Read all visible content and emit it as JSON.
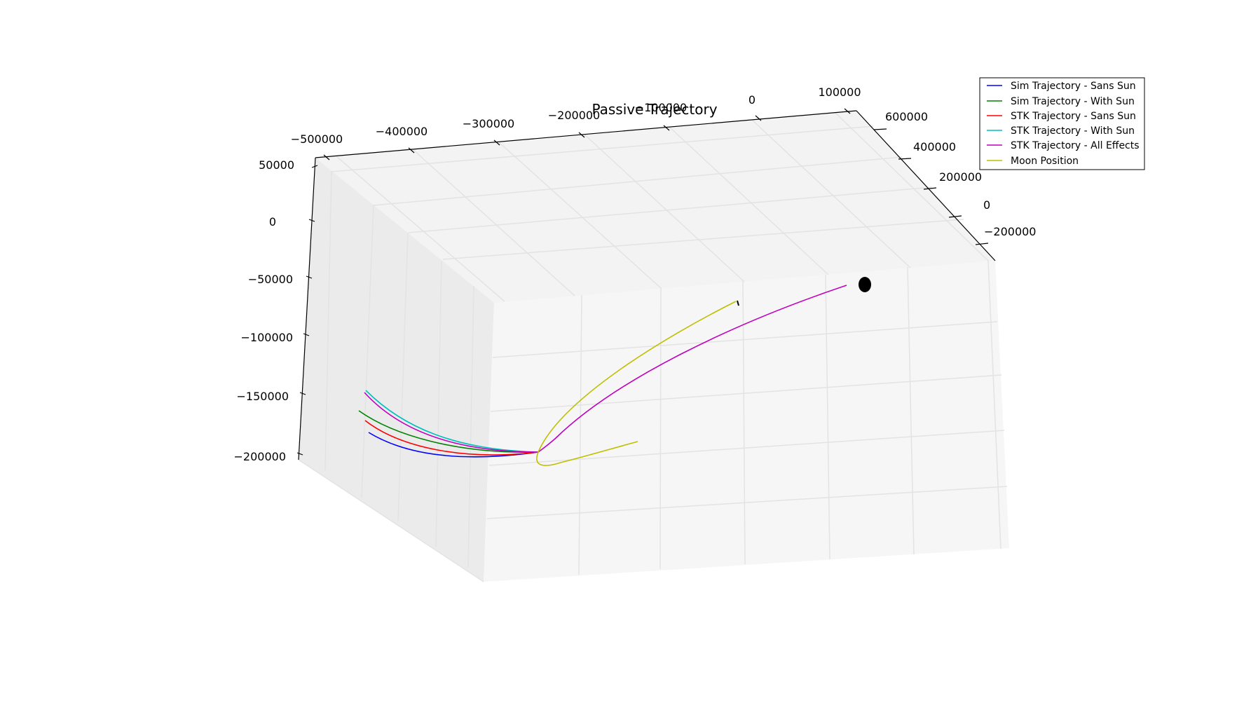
{
  "chart_data": {
    "type": "line",
    "projection": "3d",
    "title": "Passive Trajectory",
    "legend_placement": "top-right",
    "grid": true,
    "x_axis": {
      "label": "",
      "ticks": [
        "−500000",
        "−400000",
        "−300000",
        "−200000",
        "−100000",
        "0",
        "100000"
      ]
    },
    "y_axis": {
      "label": "",
      "ticks": [
        "600000",
        "400000",
        "200000",
        "0",
        "−200000"
      ]
    },
    "z_axis": {
      "label": "",
      "ticks": [
        "50000",
        "0",
        "−50000",
        "−100000",
        "−150000",
        "−200000"
      ]
    },
    "series": [
      {
        "name": "Sim Trajectory - Sans Sun",
        "color": "#0000ff"
      },
      {
        "name": "Sim Trajectory - With Sun",
        "color": "#008000"
      },
      {
        "name": "STK Trajectory - Sans Sun",
        "color": "#ff0000"
      },
      {
        "name": "STK Trajectory - With Sun",
        "color": "#00bfbf"
      },
      {
        "name": "STK Trajectory - All Effects",
        "color": "#bf00bf"
      },
      {
        "name": "Moon Position",
        "color": "#bfbf00"
      }
    ],
    "markers": [
      {
        "label": "",
        "shape": "filled-circle",
        "color": "#000000"
      }
    ]
  }
}
